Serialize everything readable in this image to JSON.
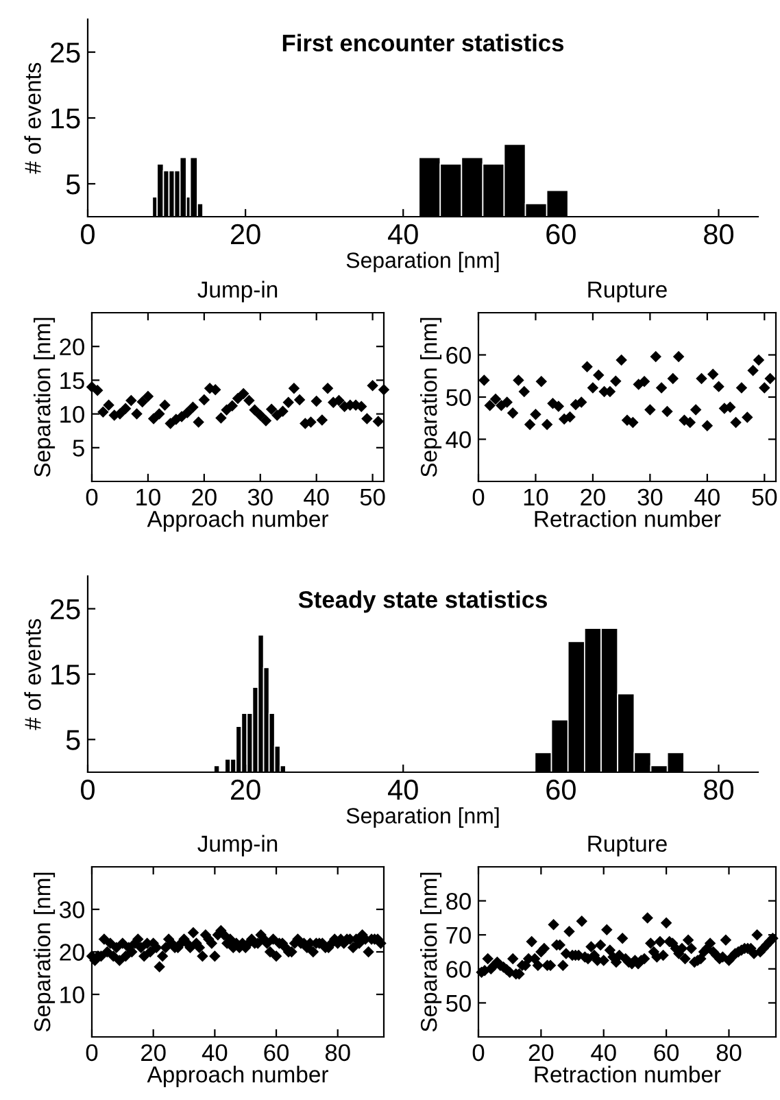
{
  "chart_data": [
    {
      "type": "histogram",
      "title": "First encounter statistics",
      "xlabel": "Separation [nm]",
      "ylabel": "# of events",
      "color": "#000000",
      "bins": [
        8.2,
        8.8,
        9.6,
        10.3,
        11.0,
        11.7,
        12.5,
        13.0,
        13.9,
        14.6,
        42.0,
        44.7,
        47.4,
        50.1,
        52.8,
        55.5,
        58.2,
        60.9
      ],
      "values": [
        3,
        8,
        7,
        7,
        7,
        9,
        3,
        9,
        2,
        0,
        9,
        8,
        9,
        8,
        11,
        2,
        4
      ],
      "xlim": [
        0,
        85
      ],
      "xticks": [
        0,
        20,
        40,
        60,
        80
      ],
      "ylim": [
        0,
        30
      ],
      "yticks": [
        5,
        15,
        25
      ],
      "grid": false,
      "legend": false
    },
    {
      "type": "scatter",
      "title": "Jump-in",
      "xlabel": "Approach number",
      "ylabel": "Separation [nm]",
      "marker": "diamond",
      "grid": false,
      "legend": false,
      "series": [
        {
          "color": "#000000",
          "x": [
            0,
            1,
            2,
            3,
            4,
            5,
            6,
            7,
            8,
            9,
            10,
            11,
            12,
            13,
            14,
            15,
            16,
            17,
            18,
            19,
            20,
            21,
            22,
            23,
            24,
            25,
            26,
            27,
            28,
            29,
            30,
            31,
            32,
            33,
            34,
            35,
            36,
            37,
            38,
            39,
            40,
            41,
            42,
            43,
            44,
            45,
            46,
            47,
            48,
            49,
            50,
            51,
            52
          ],
          "values": [
            14,
            13.5,
            10.3,
            11.3,
            9.8,
            10,
            10.8,
            12,
            10,
            11.8,
            12.6,
            9.3,
            10,
            11.3,
            8.6,
            9.2,
            9.6,
            10.2,
            11,
            8.8,
            12.1,
            13.8,
            13.6,
            9.4,
            10.6,
            11.2,
            12.3,
            13,
            12,
            10.6,
            9.8,
            9,
            10.7,
            9.8,
            10.4,
            11.7,
            13.8,
            12.1,
            8.6,
            8.8,
            11.9,
            9.1,
            13.8,
            11.7,
            12,
            11.1,
            11.3,
            11.3,
            11.1,
            9.3,
            14.2,
            8.9,
            13.6
          ]
        }
      ],
      "xlim": [
        0,
        52
      ],
      "xticks": [
        0,
        10,
        20,
        30,
        40,
        50
      ],
      "ylim": [
        0,
        25
      ],
      "yticks": [
        5,
        10,
        15,
        20
      ]
    },
    {
      "type": "scatter",
      "title": "Rupture",
      "xlabel": "Retraction number",
      "ylabel": "Separation [nm]",
      "marker": "diamond",
      "grid": false,
      "legend": false,
      "series": [
        {
          "color": "#000000",
          "x": [
            1,
            2,
            3,
            4,
            5,
            6,
            7,
            8,
            9,
            10,
            11,
            12,
            13,
            14,
            15,
            16,
            17,
            18,
            19,
            20,
            21,
            22,
            23,
            24,
            25,
            26,
            27,
            28,
            29,
            30,
            31,
            32,
            33,
            34,
            35,
            36,
            37,
            38,
            39,
            40,
            41,
            42,
            43,
            44,
            45,
            46,
            47,
            48,
            49,
            50,
            51
          ],
          "values": [
            54,
            48,
            49.5,
            48,
            48.8,
            46.2,
            54,
            51.3,
            43.5,
            45.9,
            53.7,
            43.5,
            48.5,
            47.8,
            44.8,
            45.3,
            48.2,
            48.8,
            57.2,
            52.2,
            55.2,
            51.3,
            51.3,
            53.8,
            58.8,
            44.5,
            44,
            53,
            53.7,
            47,
            59.6,
            52.2,
            46.6,
            54.4,
            59.6,
            44.5,
            44,
            47,
            54.4,
            43.2,
            55.4,
            52.5,
            47.3,
            47.6,
            44,
            52.2,
            45.2,
            56.3,
            58.8,
            52.2,
            54.4
          ]
        }
      ],
      "xlim": [
        0,
        52
      ],
      "xticks": [
        0,
        10,
        20,
        30,
        40,
        50
      ],
      "ylim": [
        30,
        70
      ],
      "yticks": [
        40,
        50,
        60
      ]
    },
    {
      "type": "histogram",
      "title": "Steady state statistics",
      "xlabel": "Separation [nm]",
      "ylabel": "# of events",
      "color": "#000000",
      "bins": [
        16.0,
        16.7,
        17.4,
        18.1,
        18.8,
        19.5,
        20.2,
        20.9,
        21.6,
        22.3,
        23.0,
        23.7,
        24.4,
        25.1,
        56.7,
        58.8,
        60.9,
        63.0,
        65.1,
        67.2,
        69.3,
        71.4,
        73.5,
        75.6
      ],
      "values": [
        1,
        0,
        2,
        2,
        7,
        9,
        9,
        13,
        21,
        16,
        9,
        4,
        1,
        0,
        3,
        8,
        20,
        22,
        22,
        12,
        3,
        1,
        3
      ],
      "xlim": [
        0,
        85
      ],
      "xticks": [
        0,
        20,
        40,
        60,
        80
      ],
      "ylim": [
        0,
        30
      ],
      "yticks": [
        5,
        15,
        25
      ],
      "grid": false,
      "legend": false
    },
    {
      "type": "scatter",
      "title": "Jump-in",
      "xlabel": "Approach number",
      "ylabel": "Separation [nm]",
      "marker": "diamond",
      "grid": false,
      "legend": false,
      "series": [
        {
          "color": "#000000",
          "x": [
            0,
            1,
            2,
            3,
            4,
            5,
            6,
            7,
            8,
            9,
            10,
            11,
            12,
            13,
            14,
            15,
            16,
            17,
            18,
            19,
            20,
            21,
            22,
            23,
            24,
            25,
            26,
            27,
            28,
            29,
            30,
            31,
            32,
            33,
            34,
            35,
            36,
            37,
            38,
            39,
            40,
            41,
            42,
            43,
            44,
            45,
            46,
            47,
            48,
            49,
            50,
            51,
            52,
            53,
            54,
            55,
            56,
            57,
            58,
            59,
            60,
            61,
            62,
            63,
            64,
            65,
            66,
            67,
            68,
            69,
            70,
            71,
            72,
            73,
            74,
            75,
            76,
            77,
            78,
            79,
            80,
            81,
            82,
            83,
            84,
            85,
            86,
            87,
            88,
            89,
            90,
            91,
            92,
            93,
            94
          ],
          "values": [
            19,
            18,
            19,
            19,
            23,
            20,
            22,
            19,
            21,
            18,
            22,
            19,
            21,
            20,
            22,
            23,
            21,
            19,
            22,
            20,
            22,
            21,
            16.5,
            19,
            21,
            23,
            22,
            21,
            21,
            22,
            23,
            22,
            21,
            24.5,
            22,
            21,
            19,
            24,
            23,
            22,
            19,
            24,
            25,
            24,
            22,
            23,
            21,
            22,
            21,
            22,
            21,
            22,
            23,
            22,
            22,
            24,
            23,
            22,
            20,
            23,
            19,
            22,
            22,
            21,
            20,
            20,
            22,
            23,
            22,
            22,
            21,
            22,
            20,
            22,
            22,
            22,
            21,
            21,
            22,
            23,
            22,
            23,
            22,
            23,
            23,
            21,
            23,
            22,
            24,
            23,
            20,
            23,
            23,
            23,
            22
          ]
        }
      ],
      "xlim": [
        0,
        95
      ],
      "xticks": [
        0,
        20,
        40,
        60,
        80
      ],
      "ylim": [
        0,
        40
      ],
      "yticks": [
        10,
        20,
        30
      ]
    },
    {
      "type": "scatter",
      "title": "Rupture",
      "xlabel": "Retraction number",
      "ylabel": "Separation [nm]",
      "marker": "diamond",
      "grid": false,
      "legend": false,
      "series": [
        {
          "color": "#000000",
          "x": [
            1,
            2,
            3,
            4,
            5,
            6,
            7,
            8,
            9,
            10,
            11,
            12,
            13,
            14,
            15,
            16,
            17,
            18,
            19,
            20,
            21,
            22,
            23,
            24,
            25,
            26,
            27,
            28,
            29,
            30,
            31,
            32,
            33,
            34,
            35,
            36,
            37,
            38,
            39,
            40,
            41,
            42,
            43,
            44,
            45,
            46,
            47,
            48,
            49,
            50,
            51,
            52,
            53,
            54,
            55,
            56,
            57,
            58,
            59,
            60,
            61,
            62,
            63,
            64,
            65,
            66,
            67,
            68,
            69,
            70,
            71,
            72,
            73,
            74,
            75,
            76,
            77,
            78,
            79,
            80,
            81,
            82,
            83,
            84,
            85,
            86,
            87,
            88,
            89,
            90,
            91,
            92,
            93,
            94
          ],
          "values": [
            59,
            59.5,
            63,
            60,
            61,
            62,
            61,
            60.5,
            59.8,
            59,
            63,
            58.5,
            58.5,
            61,
            61,
            63,
            68,
            63,
            61,
            65,
            66,
            61,
            61,
            73,
            67,
            67,
            61,
            64.5,
            71,
            64,
            64,
            64,
            74,
            63.5,
            63,
            66.5,
            64,
            62.5,
            67,
            62.5,
            71.5,
            65.5,
            63.5,
            62,
            64,
            69,
            63,
            62,
            61.5,
            62.5,
            61.5,
            62.5,
            63,
            75,
            67.5,
            65,
            63.5,
            68,
            64,
            73.5,
            68,
            67.5,
            66,
            64.5,
            66,
            63,
            68.5,
            66,
            62,
            62.5,
            63,
            65,
            66,
            67.5,
            65,
            64,
            63,
            63.5,
            68.5,
            62.5,
            63.5,
            64.5,
            65,
            65.5,
            66,
            66,
            66,
            64.5,
            70,
            65,
            66,
            67,
            68,
            69
          ]
        }
      ],
      "xlim": [
        0,
        95
      ],
      "xticks": [
        0,
        20,
        40,
        60,
        80
      ],
      "ylim": [
        40,
        90
      ],
      "yticks": [
        50,
        60,
        70,
        80
      ]
    }
  ]
}
